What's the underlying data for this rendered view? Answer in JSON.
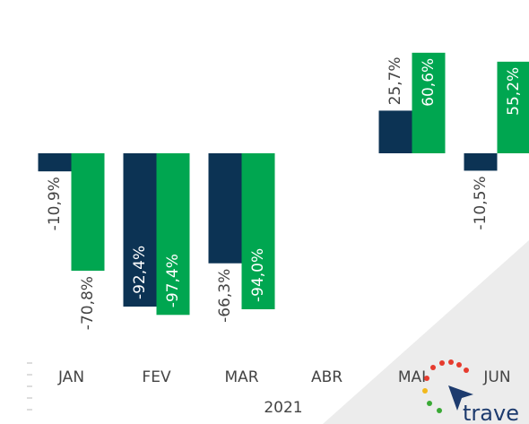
{
  "chart_data": {
    "type": "bar",
    "categories": [
      "JAN",
      "FEV",
      "MAR",
      "ABR",
      "MAI",
      "JUN"
    ],
    "x_label": "2021",
    "series": [
      {
        "color": "#0c3354",
        "values": [
          -10.9,
          -92.4,
          -66.3,
          null,
          25.7,
          -10.5
        ],
        "value_labels": [
          "-10,9%",
          "-92,4%",
          "-66,3%",
          null,
          "25,7%",
          "-10,5%"
        ]
      },
      {
        "color": "#00a650",
        "values": [
          -70.8,
          -97.4,
          -94.0,
          null,
          60.6,
          55.2
        ],
        "value_labels": [
          "-70,8%",
          "-97,4%",
          "-94,0%",
          null,
          "60,6%",
          "55,2%"
        ]
      }
    ],
    "logo_text": "trave"
  }
}
